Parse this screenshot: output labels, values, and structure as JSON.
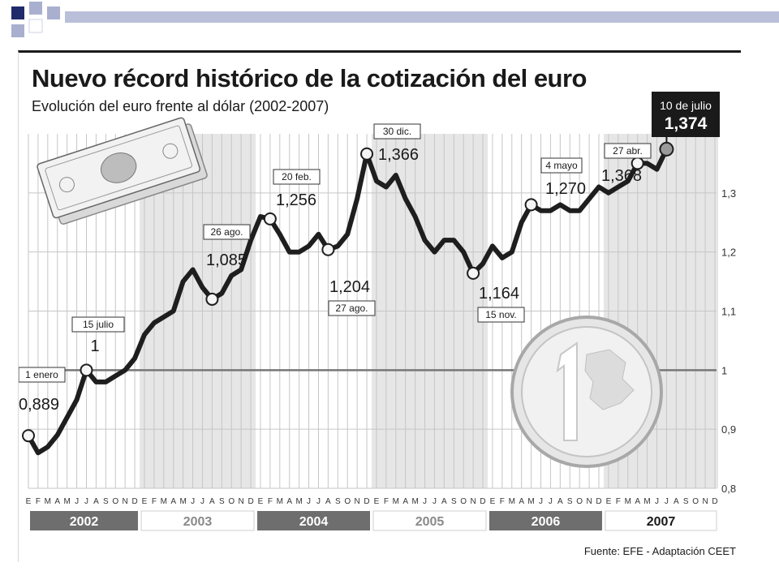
{
  "chart_data": {
    "type": "line",
    "title": "Nuevo récord histórico de la cotización del euro",
    "subtitle": "Evolución del euro frente al dólar  (2002-2007)",
    "source": "Fuente: EFE - Adaptación CEET",
    "ylim": [
      0.8,
      1.4
    ],
    "yticks": [
      "0,8",
      "0,9",
      "1",
      "1,1",
      "1,2",
      "1,3"
    ],
    "grid": true,
    "month_letters": [
      "E",
      "F",
      "M",
      "A",
      "M",
      "J",
      "J",
      "A",
      "S",
      "O",
      "N",
      "D"
    ],
    "years": [
      "2002",
      "2003",
      "2004",
      "2005",
      "2006",
      "2007"
    ],
    "series": [
      {
        "x": [
          "2002-01",
          "2002-02",
          "2002-03",
          "2002-04",
          "2002-05",
          "2002-06",
          "2002-07",
          "2002-08",
          "2002-09",
          "2002-10",
          "2002-11",
          "2002-12",
          "2003-01",
          "2003-02",
          "2003-03",
          "2003-04",
          "2003-05",
          "2003-06",
          "2003-07",
          "2003-08",
          "2003-09",
          "2003-10",
          "2003-11",
          "2003-12",
          "2004-01",
          "2004-02",
          "2004-03",
          "2004-04",
          "2004-05",
          "2004-06",
          "2004-07",
          "2004-08",
          "2004-09",
          "2004-10",
          "2004-11",
          "2004-12",
          "2005-01",
          "2005-02",
          "2005-03",
          "2005-04",
          "2005-05",
          "2005-06",
          "2005-07",
          "2005-08",
          "2005-09",
          "2005-10",
          "2005-11",
          "2005-12",
          "2006-01",
          "2006-02",
          "2006-03",
          "2006-04",
          "2006-05",
          "2006-06",
          "2006-07",
          "2006-08",
          "2006-09",
          "2006-10",
          "2006-11",
          "2006-12",
          "2007-01",
          "2007-02",
          "2007-03",
          "2007-04",
          "2007-05",
          "2007-06",
          "2007-07"
        ],
        "values": [
          0.889,
          0.86,
          0.87,
          0.89,
          0.92,
          0.95,
          1.0,
          0.98,
          0.98,
          0.99,
          1.0,
          1.02,
          1.06,
          1.08,
          1.09,
          1.1,
          1.15,
          1.17,
          1.14,
          1.12,
          1.13,
          1.16,
          1.17,
          1.22,
          1.26,
          1.256,
          1.23,
          1.2,
          1.2,
          1.21,
          1.23,
          1.204,
          1.21,
          1.23,
          1.29,
          1.366,
          1.32,
          1.31,
          1.33,
          1.29,
          1.26,
          1.22,
          1.2,
          1.22,
          1.22,
          1.2,
          1.164,
          1.18,
          1.21,
          1.19,
          1.2,
          1.25,
          1.28,
          1.27,
          1.27,
          1.28,
          1.27,
          1.27,
          1.29,
          1.31,
          1.3,
          1.31,
          1.32,
          1.35,
          1.35,
          1.34,
          1.374
        ]
      }
    ],
    "annotations": [
      {
        "x": "2002-01",
        "label": "1 enero",
        "value": "0,889"
      },
      {
        "x": "2002-07",
        "label": "15 julio",
        "value": "1"
      },
      {
        "x": "2003-08",
        "label": "26 ago.",
        "value": "1,085"
      },
      {
        "x": "2004-02",
        "label": "20 feb.",
        "value": "1,256"
      },
      {
        "x": "2004-08",
        "label": "27 ago.",
        "value": "1,204"
      },
      {
        "x": "2004-12",
        "label": "30 dic.",
        "value": "1,366"
      },
      {
        "x": "2005-11",
        "label": "15 nov.",
        "value": "1,164"
      },
      {
        "x": "2006-05",
        "label": "4 mayo",
        "value": "1,270"
      },
      {
        "x": "2007-04",
        "label": "27 abr.",
        "value": "1,368"
      },
      {
        "x": "2007-07",
        "label": "10 de julio",
        "value": "1,374"
      }
    ]
  }
}
